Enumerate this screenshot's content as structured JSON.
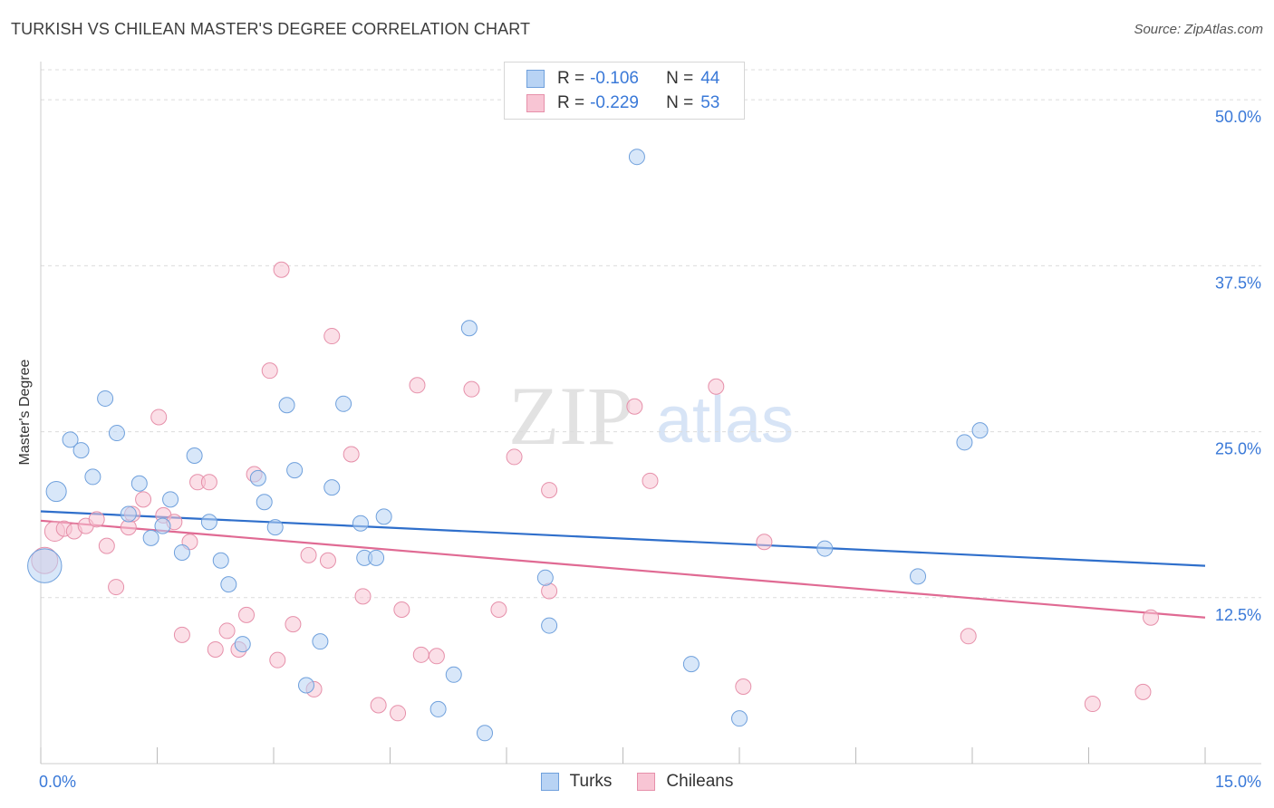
{
  "header": {
    "title": "TURKISH VS CHILEAN MASTER'S DEGREE CORRELATION CHART",
    "source": "Source: ZipAtlas.com"
  },
  "watermark": {
    "zip": "ZIP",
    "atlas": "atlas"
  },
  "legend": {
    "rows": [
      {
        "r_label": "R =",
        "r_value": "-0.106",
        "n_label": "N =",
        "n_value": "44"
      },
      {
        "r_label": "R =",
        "r_value": "-0.229",
        "n_label": "N =",
        "n_value": "53"
      }
    ]
  },
  "bottom_legend": {
    "turks": "Turks",
    "chileans": "Chileans"
  },
  "colors": {
    "turks_fill": "#b8d3f4",
    "turks_stroke": "#6fa0dc",
    "turks_line": "#2f6fcb",
    "chileans_fill": "#f8c5d4",
    "chileans_stroke": "#e690aa",
    "chileans_line": "#e06a93",
    "tick_label": "#3a79d8",
    "grid": "#dcdcdc"
  },
  "chart_data": {
    "type": "scatter",
    "title": "TURKISH VS CHILEAN MASTER'S DEGREE CORRELATION CHART",
    "xlabel": "",
    "ylabel": "Master's Degree",
    "xlim": [
      0,
      15
    ],
    "ylim": [
      0,
      52.4
    ],
    "x_tick_labels": [
      "0.0%",
      "15.0%"
    ],
    "y_ticks": [
      12.5,
      25.0,
      37.5,
      50.0
    ],
    "y_tick_labels": [
      "12.5%",
      "25.0%",
      "37.5%",
      "50.0%"
    ],
    "grid": true,
    "legend_position": "top-center",
    "series": [
      {
        "name": "Turks",
        "r": -0.106,
        "n": 44,
        "trend": [
          [
            0,
            19.0
          ],
          [
            15,
            14.9
          ]
        ],
        "points": [
          [
            0.05,
            14.9,
            2.2
          ],
          [
            0.2,
            20.5,
            1.3
          ],
          [
            0.38,
            24.4,
            1.0
          ],
          [
            0.52,
            23.6,
            1.0
          ],
          [
            0.67,
            21.6,
            1.0
          ],
          [
            0.83,
            27.5,
            1.0
          ],
          [
            0.98,
            24.9,
            1.0
          ],
          [
            1.27,
            21.1,
            1.0
          ],
          [
            1.13,
            18.8,
            1.0
          ],
          [
            1.42,
            17.0,
            1.0
          ],
          [
            1.57,
            17.9,
            1.0
          ],
          [
            1.67,
            19.9,
            1.0
          ],
          [
            1.82,
            15.9,
            1.0
          ],
          [
            1.98,
            23.2,
            1.0
          ],
          [
            2.17,
            18.2,
            1.0
          ],
          [
            2.32,
            15.3,
            1.0
          ],
          [
            2.42,
            13.5,
            1.0
          ],
          [
            2.6,
            9.0,
            1.0
          ],
          [
            2.8,
            21.5,
            1.0
          ],
          [
            2.88,
            19.7,
            1.0
          ],
          [
            3.02,
            17.8,
            1.0
          ],
          [
            3.17,
            27.0,
            1.0
          ],
          [
            3.27,
            22.1,
            1.0
          ],
          [
            3.42,
            5.9,
            1.0
          ],
          [
            3.6,
            9.2,
            1.0
          ],
          [
            3.75,
            20.8,
            1.0
          ],
          [
            3.9,
            27.1,
            1.0
          ],
          [
            4.12,
            18.1,
            1.0
          ],
          [
            4.17,
            15.5,
            1.0
          ],
          [
            4.32,
            15.5,
            1.0
          ],
          [
            4.42,
            18.6,
            1.0
          ],
          [
            5.12,
            4.1,
            1.0
          ],
          [
            5.32,
            6.7,
            1.0
          ],
          [
            5.52,
            32.8,
            1.0
          ],
          [
            5.72,
            2.3,
            1.0
          ],
          [
            6.5,
            14.0,
            1.0
          ],
          [
            6.55,
            10.4,
            1.0
          ],
          [
            7.68,
            45.7,
            1.0
          ],
          [
            8.38,
            7.5,
            1.0
          ],
          [
            9.0,
            3.4,
            1.0
          ],
          [
            10.1,
            16.2,
            1.0
          ],
          [
            11.3,
            14.1,
            1.0
          ],
          [
            11.9,
            24.2,
            1.0
          ],
          [
            12.1,
            25.1,
            1.0
          ]
        ]
      },
      {
        "name": "Chileans",
        "r": -0.229,
        "n": 53,
        "trend": [
          [
            0,
            18.3
          ],
          [
            15,
            11.0
          ]
        ],
        "points": [
          [
            0.05,
            15.3,
            1.7
          ],
          [
            0.18,
            17.5,
            1.3
          ],
          [
            0.3,
            17.7,
            1.0
          ],
          [
            0.43,
            17.5,
            1.0
          ],
          [
            0.58,
            17.9,
            1.0
          ],
          [
            0.72,
            18.4,
            1.0
          ],
          [
            0.85,
            16.4,
            1.0
          ],
          [
            0.97,
            13.3,
            1.0
          ],
          [
            1.13,
            17.8,
            1.0
          ],
          [
            1.18,
            18.8,
            1.0
          ],
          [
            1.32,
            19.9,
            1.0
          ],
          [
            1.52,
            26.1,
            1.0
          ],
          [
            1.58,
            18.7,
            1.0
          ],
          [
            1.72,
            18.2,
            1.0
          ],
          [
            1.82,
            9.7,
            1.0
          ],
          [
            1.92,
            16.7,
            1.0
          ],
          [
            2.02,
            21.2,
            1.0
          ],
          [
            2.17,
            21.2,
            1.0
          ],
          [
            2.25,
            8.6,
            1.0
          ],
          [
            2.4,
            10.0,
            1.0
          ],
          [
            2.55,
            8.6,
            1.0
          ],
          [
            2.65,
            11.2,
            1.0
          ],
          [
            2.75,
            21.8,
            1.0
          ],
          [
            2.95,
            29.6,
            1.0
          ],
          [
            3.05,
            7.8,
            1.0
          ],
          [
            3.1,
            37.2,
            1.0
          ],
          [
            3.25,
            10.5,
            1.0
          ],
          [
            3.45,
            15.7,
            1.0
          ],
          [
            3.52,
            5.6,
            1.0
          ],
          [
            3.7,
            15.3,
            1.0
          ],
          [
            3.75,
            32.2,
            1.0
          ],
          [
            4.0,
            23.3,
            1.0
          ],
          [
            4.15,
            12.6,
            1.0
          ],
          [
            4.35,
            4.4,
            1.0
          ],
          [
            4.6,
            3.8,
            1.0
          ],
          [
            4.65,
            11.6,
            1.0
          ],
          [
            4.85,
            28.5,
            1.0
          ],
          [
            4.9,
            8.2,
            1.0
          ],
          [
            5.1,
            8.1,
            1.0
          ],
          [
            5.55,
            28.2,
            1.0
          ],
          [
            5.9,
            11.6,
            1.0
          ],
          [
            6.1,
            23.1,
            1.0
          ],
          [
            6.55,
            13.0,
            1.0
          ],
          [
            6.55,
            20.6,
            1.0
          ],
          [
            7.65,
            26.9,
            1.0
          ],
          [
            7.85,
            21.3,
            1.0
          ],
          [
            8.7,
            28.4,
            1.0
          ],
          [
            9.05,
            5.8,
            1.0
          ],
          [
            9.32,
            16.7,
            1.0
          ],
          [
            11.95,
            9.6,
            1.0
          ],
          [
            13.55,
            4.5,
            1.0
          ],
          [
            14.2,
            5.4,
            1.0
          ],
          [
            14.3,
            11.0,
            1.0
          ]
        ]
      }
    ]
  }
}
